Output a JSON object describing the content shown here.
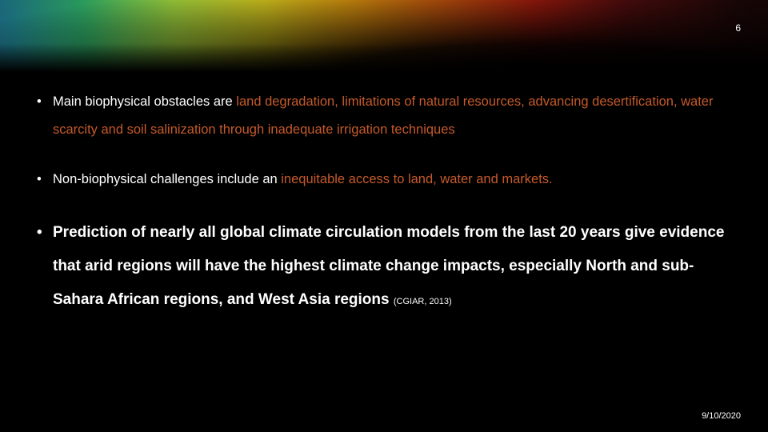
{
  "page_number": "6",
  "date": "9/10/2020",
  "bullets": {
    "b1_pre": "Main biophysical obstacles are ",
    "b1_hl": "land degradation, limitations of natural resources, advancing desertification, water scarcity and soil salinization through inadequate irrigation techniques",
    "b2_pre": "Non-biophysical challenges include an ",
    "b2_hl": "inequitable access to land, water and markets.",
    "b3_main": "Prediction of nearly all global climate circulation models from the last 20 years give evidence that arid regions will have the highest climate change impacts, especially North and sub-Sahara African regions, and West Asia regions ",
    "b3_cite": "(CGIAR, 2013)"
  },
  "colors": {
    "background": "#000000",
    "text": "#ffffff",
    "highlight": "#c55a2a"
  }
}
